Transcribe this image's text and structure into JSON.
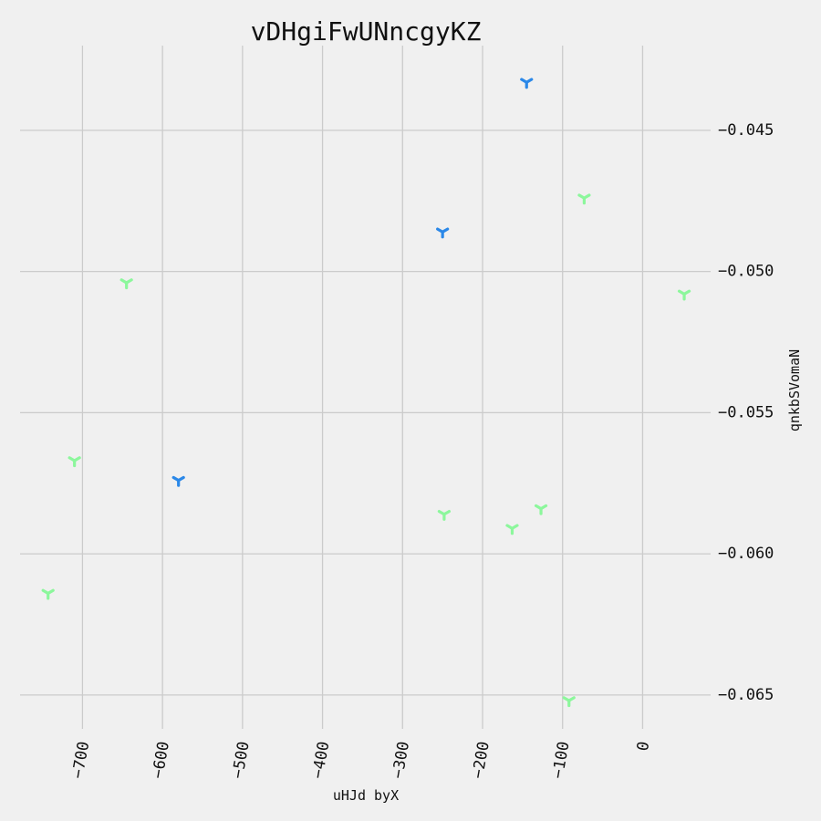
{
  "chart_data": {
    "type": "scatter",
    "title": "vDHgiFwUNncgyKZ",
    "xlabel": "uHJd byX",
    "ylabel": "qnkbSVomaN",
    "xlim": [
      -778,
      85
    ],
    "ylim": [
      -0.0662,
      -0.042
    ],
    "x_ticks": [
      -700,
      -600,
      -500,
      -400,
      -300,
      -200,
      -100,
      0
    ],
    "x_tick_labels": [
      "−700",
      "−600",
      "−500",
      "−400",
      "−300",
      "−200",
      "−100",
      "0"
    ],
    "y_ticks": [
      -0.045,
      -0.05,
      -0.055,
      -0.06,
      -0.065
    ],
    "y_tick_labels": [
      "−0.045",
      "−0.050",
      "−0.055",
      "−0.060",
      "−0.065"
    ],
    "y_axis_side": "right",
    "grid": true,
    "marker": "tri-down",
    "series": [
      {
        "color": "#2b88e8",
        "x": [
          -145,
          -250,
          -580
        ],
        "y": [
          -0.0433,
          -0.0486,
          -0.0574
        ]
      },
      {
        "color": "#8cf79c",
        "x": [
          -73,
          -645,
          52,
          -710,
          -248,
          -163,
          -127,
          -743,
          -92
        ],
        "y": [
          -0.0474,
          -0.0504,
          -0.0508,
          -0.0567,
          -0.0586,
          -0.0591,
          -0.0584,
          -0.0614,
          -0.0652
        ]
      }
    ]
  }
}
